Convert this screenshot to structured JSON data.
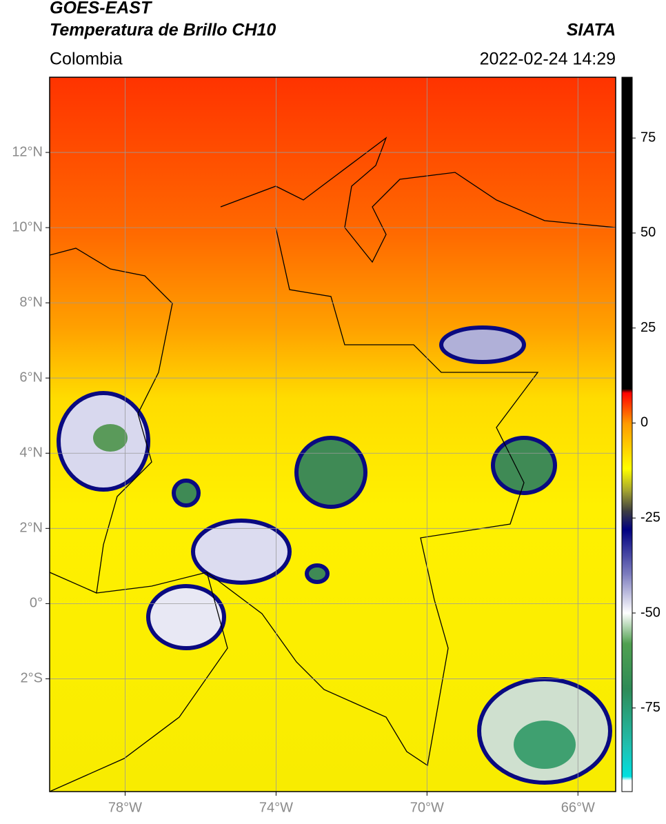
{
  "header": {
    "title": "GOES-EAST",
    "subtitle": "Temperatura de Brillo CH10",
    "source": "SIATA",
    "region": "Colombia",
    "datetime": "2022-02-24 14:29"
  },
  "map": {
    "xlim": [
      -80,
      -65
    ],
    "ylim": [
      -5,
      14
    ],
    "xticks": [
      {
        "value": -78,
        "label": "78°W"
      },
      {
        "value": -74,
        "label": "74°W"
      },
      {
        "value": -70,
        "label": "70°W"
      },
      {
        "value": -66,
        "label": "66°W"
      }
    ],
    "yticks": [
      {
        "value": 12,
        "label": "12°N"
      },
      {
        "value": 10,
        "label": "10°N"
      },
      {
        "value": 8,
        "label": "8°N"
      },
      {
        "value": 6,
        "label": "6°N"
      },
      {
        "value": 4,
        "label": "4°N"
      },
      {
        "value": 2,
        "label": "2°N"
      },
      {
        "value": 0,
        "label": "0°"
      },
      {
        "value": -2,
        "label": "2°S"
      }
    ],
    "grid": true
  },
  "colorbar": {
    "lim": [
      -97,
      91
    ],
    "ticks": [
      75,
      50,
      25,
      0,
      -25,
      -50,
      -75
    ],
    "stops": [
      {
        "value": -97,
        "color": "#ffffff"
      },
      {
        "value": -94,
        "color": "#ffffff"
      },
      {
        "value": -93,
        "color": "#00e0e0"
      },
      {
        "value": -85,
        "color": "#20c0b0"
      },
      {
        "value": -70,
        "color": "#2e8b57"
      },
      {
        "value": -58,
        "color": "#50a050"
      },
      {
        "value": -50,
        "color": "#ffffff"
      },
      {
        "value": -40,
        "color": "#8080c0"
      },
      {
        "value": -28,
        "color": "#000080"
      },
      {
        "value": -23,
        "color": "#404040"
      },
      {
        "value": -18,
        "color": "#a0a030"
      },
      {
        "value": -12,
        "color": "#ffff00"
      },
      {
        "value": 0,
        "color": "#ff9900"
      },
      {
        "value": 8,
        "color": "#ff0000"
      },
      {
        "value": 9,
        "color": "#000000"
      },
      {
        "value": 91,
        "color": "#000000"
      }
    ]
  }
}
